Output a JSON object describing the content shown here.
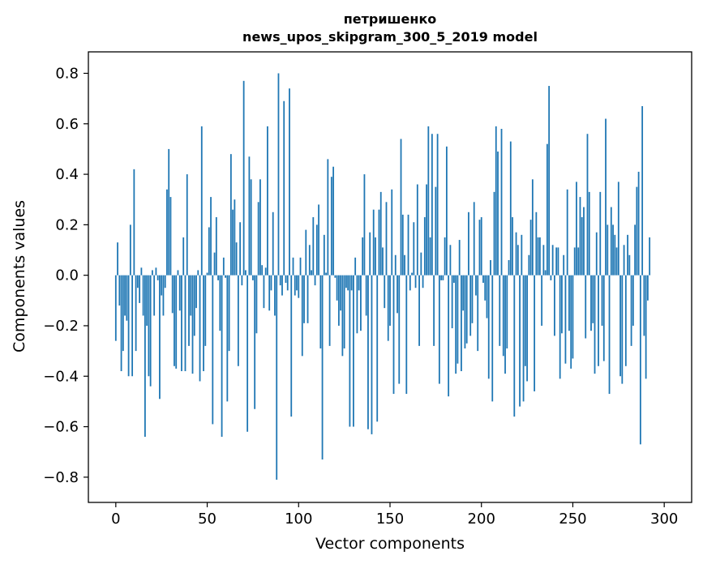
{
  "chart_data": {
    "type": "bar",
    "title": [
      "петришенко",
      "news_upos_skipgram_300_5_2019 model"
    ],
    "xlabel": "Vector components",
    "ylabel": "Components values",
    "xlim": [
      -15,
      315
    ],
    "ylim": [
      -0.9,
      0.885
    ],
    "xticks": [
      0,
      50,
      100,
      150,
      200,
      250,
      300
    ],
    "xtick_labels": [
      "0",
      "50",
      "100",
      "150",
      "200",
      "250",
      "300"
    ],
    "yticks": [
      -0.8,
      -0.6,
      -0.4,
      -0.2,
      0.0,
      0.2,
      0.4,
      0.6,
      0.8
    ],
    "ytick_labels": [
      "−0.8",
      "−0.6",
      "−0.4",
      "−0.2",
      "0.0",
      "0.2",
      "0.4",
      "0.6",
      "0.8"
    ],
    "bar_color": "#1f77b4",
    "grid": false,
    "values": [
      -0.26,
      0.13,
      -0.12,
      -0.38,
      -0.3,
      -0.16,
      -0.18,
      -0.4,
      0.2,
      -0.4,
      0.42,
      -0.3,
      -0.05,
      -0.11,
      0.03,
      -0.16,
      -0.64,
      -0.2,
      -0.4,
      -0.44,
      0.02,
      -0.16,
      0.03,
      -0.02,
      -0.49,
      -0.08,
      -0.16,
      -0.05,
      0.34,
      0.5,
      0.31,
      -0.15,
      -0.36,
      -0.37,
      0.02,
      -0.14,
      -0.38,
      0.15,
      -0.38,
      0.4,
      -0.28,
      -0.16,
      -0.39,
      -0.24,
      -0.13,
      0.02,
      -0.42,
      0.59,
      -0.38,
      -0.28,
      0.01,
      0.19,
      0.31,
      -0.59,
      0.09,
      0.23,
      -0.02,
      -0.22,
      -0.64,
      0.07,
      -0.01,
      -0.5,
      -0.3,
      0.48,
      0.26,
      0.3,
      0.13,
      -0.36,
      0.21,
      -0.04,
      0.77,
      0.02,
      -0.62,
      0.47,
      0.38,
      -0.02,
      -0.53,
      -0.23,
      0.29,
      0.38,
      0.04,
      -0.13,
      0.03,
      0.59,
      -0.14,
      -0.06,
      0.25,
      -0.16,
      -0.81,
      0.8,
      -0.04,
      -0.08,
      0.69,
      -0.03,
      -0.06,
      0.74,
      -0.56,
      0.07,
      -0.08,
      -0.06,
      -0.09,
      0.07,
      -0.32,
      -0.19,
      0.18,
      -0.19,
      0.12,
      0.02,
      0.23,
      -0.04,
      0.2,
      0.28,
      -0.29,
      -0.73,
      0.16,
      0.01,
      0.46,
      -0.28,
      0.39,
      0.43,
      -0.01,
      -0.1,
      -0.2,
      -0.14,
      -0.32,
      -0.29,
      -0.05,
      -0.06,
      -0.6,
      -0.06,
      -0.6,
      0.07,
      -0.23,
      -0.06,
      -0.22,
      0.15,
      0.4,
      -0.16,
      -0.61,
      0.17,
      -0.63,
      0.26,
      0.15,
      -0.58,
      0.26,
      0.33,
      0.11,
      -0.13,
      0.29,
      -0.26,
      -0.2,
      0.34,
      -0.47,
      0.08,
      -0.15,
      -0.43,
      0.54,
      0.24,
      0.08,
      -0.47,
      0.24,
      -0.06,
      0.01,
      0.21,
      -0.05,
      0.36,
      -0.28,
      0.09,
      -0.05,
      0.23,
      0.36,
      0.59,
      0.15,
      0.56,
      -0.28,
      0.35,
      0.56,
      -0.43,
      -0.02,
      -0.02,
      0.15,
      0.51,
      -0.48,
      0.12,
      -0.21,
      -0.03,
      -0.39,
      -0.35,
      0.14,
      -0.38,
      -0.14,
      -0.29,
      -0.27,
      0.25,
      -0.24,
      -0.19,
      0.29,
      -0.08,
      -0.3,
      0.22,
      0.23,
      -0.03,
      -0.1,
      -0.17,
      -0.41,
      0.06,
      -0.5,
      0.33,
      0.59,
      0.49,
      -0.28,
      0.58,
      -0.32,
      -0.39,
      -0.29,
      0.06,
      0.53,
      0.23,
      -0.56,
      0.17,
      0.12,
      -0.52,
      0.16,
      -0.5,
      -0.36,
      -0.42,
      0.08,
      0.22,
      0.38,
      -0.46,
      0.25,
      0.15,
      0.15,
      -0.2,
      0.12,
      0.02,
      0.52,
      0.75,
      -0.02,
      0.12,
      -0.24,
      0.11,
      0.11,
      -0.41,
      -0.23,
      0.08,
      -0.35,
      0.34,
      -0.22,
      -0.37,
      -0.33,
      0.11,
      0.37,
      0.11,
      0.31,
      0.23,
      0.27,
      -0.25,
      0.56,
      0.33,
      -0.22,
      -0.19,
      -0.39,
      0.17,
      -0.36,
      0.33,
      -0.2,
      -0.34,
      0.62,
      0.2,
      -0.47,
      0.27,
      0.2,
      0.16,
      0.11,
      0.37,
      -0.4,
      -0.43,
      0.12,
      -0.36,
      0.16,
      0.08,
      -0.28,
      -0.2,
      0.2,
      0.35,
      0.41,
      -0.67,
      0.67,
      -0.24,
      -0.41,
      -0.1,
      0.15
    ]
  }
}
